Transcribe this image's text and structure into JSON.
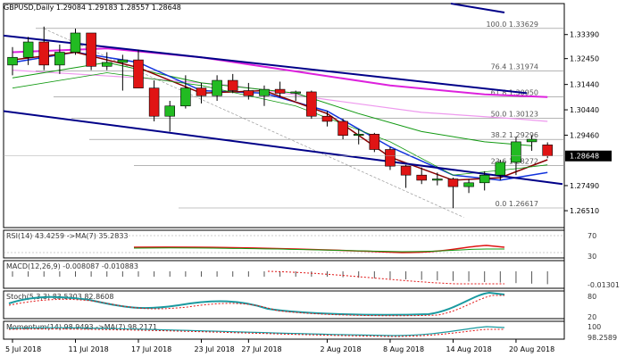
{
  "chart_data": {
    "type": "candlestick",
    "title": "GBPUSD,Daily  1.29084 1.29183 1.28557 1.28648",
    "ylim": [
      1.2585,
      1.346
    ],
    "y_ticks": [
      1.3339,
      1.3245,
      1.3144,
      1.3045,
      1.2946,
      1.2749,
      1.2651
    ],
    "y_tick_labels": [
      "1.33390",
      "1.32450",
      "1.31440",
      "1.30440",
      "1.29460",
      "1.27490",
      "1.26510"
    ],
    "current_price": 1.28648,
    "current_price_label": "1.28648",
    "x_labels": [
      "5 Jul 2018",
      "11 Jul 2018",
      "17 Jul 2018",
      "23 Jul 2018",
      "27 Jul 2018",
      "2 Aug 2018",
      "8 Aug 2018",
      "14 Aug 2018",
      "20 Aug 2018"
    ],
    "x_label_index": [
      0,
      4,
      8,
      12,
      15,
      20,
      24,
      28,
      32
    ],
    "candles": [
      {
        "o": 1.322,
        "h": 1.329,
        "l": 1.318,
        "c": 1.325
      },
      {
        "o": 1.325,
        "h": 1.333,
        "l": 1.322,
        "c": 1.331
      },
      {
        "o": 1.331,
        "h": 1.337,
        "l": 1.32,
        "c": 1.322
      },
      {
        "o": 1.322,
        "h": 1.33,
        "l": 1.3185,
        "c": 1.327
      },
      {
        "o": 1.327,
        "h": 1.3362,
        "l": 1.326,
        "c": 1.3345
      },
      {
        "o": 1.3345,
        "h": 1.3345,
        "l": 1.32,
        "c": 1.3215
      },
      {
        "o": 1.3215,
        "h": 1.327,
        "l": 1.32,
        "c": 1.323
      },
      {
        "o": 1.323,
        "h": 1.326,
        "l": 1.312,
        "c": 1.324
      },
      {
        "o": 1.324,
        "h": 1.328,
        "l": 1.313,
        "c": 1.313
      },
      {
        "o": 1.313,
        "h": 1.316,
        "l": 1.3,
        "c": 1.302
      },
      {
        "o": 1.302,
        "h": 1.308,
        "l": 1.296,
        "c": 1.306
      },
      {
        "o": 1.306,
        "h": 1.318,
        "l": 1.305,
        "c": 1.313
      },
      {
        "o": 1.313,
        "h": 1.315,
        "l": 1.307,
        "c": 1.31
      },
      {
        "o": 1.31,
        "h": 1.318,
        "l": 1.308,
        "c": 1.316
      },
      {
        "o": 1.316,
        "h": 1.3185,
        "l": 1.311,
        "c": 1.312
      },
      {
        "o": 1.312,
        "h": 1.315,
        "l": 1.3085,
        "c": 1.31
      },
      {
        "o": 1.31,
        "h": 1.314,
        "l": 1.306,
        "c": 1.3125
      },
      {
        "o": 1.3125,
        "h": 1.3155,
        "l": 1.3095,
        "c": 1.311
      },
      {
        "o": 1.311,
        "h": 1.312,
        "l": 1.308,
        "c": 1.3115
      },
      {
        "o": 1.3115,
        "h": 1.312,
        "l": 1.301,
        "c": 1.302
      },
      {
        "o": 1.302,
        "h": 1.304,
        "l": 1.298,
        "c": 1.3
      },
      {
        "o": 1.3,
        "h": 1.301,
        "l": 1.293,
        "c": 1.2945
      },
      {
        "o": 1.2945,
        "h": 1.297,
        "l": 1.291,
        "c": 1.295
      },
      {
        "o": 1.295,
        "h": 1.2955,
        "l": 1.288,
        "c": 1.289
      },
      {
        "o": 1.289,
        "h": 1.29,
        "l": 1.281,
        "c": 1.2825
      },
      {
        "o": 1.2825,
        "h": 1.283,
        "l": 1.274,
        "c": 1.279
      },
      {
        "o": 1.279,
        "h": 1.282,
        "l": 1.2755,
        "c": 1.277
      },
      {
        "o": 1.277,
        "h": 1.28,
        "l": 1.275,
        "c": 1.2775
      },
      {
        "o": 1.2775,
        "h": 1.278,
        "l": 1.2661,
        "c": 1.2745
      },
      {
        "o": 1.2745,
        "h": 1.2775,
        "l": 1.272,
        "c": 1.276
      },
      {
        "o": 1.276,
        "h": 1.2805,
        "l": 1.273,
        "c": 1.279
      },
      {
        "o": 1.279,
        "h": 1.285,
        "l": 1.277,
        "c": 1.284
      },
      {
        "o": 1.284,
        "h": 1.294,
        "l": 1.279,
        "c": 1.292
      },
      {
        "o": 1.292,
        "h": 1.2945,
        "l": 1.2885,
        "c": 1.293
      },
      {
        "o": 1.2908,
        "h": 1.2918,
        "l": 1.2856,
        "c": 1.2865
      }
    ],
    "fib_levels": [
      {
        "label": "100.0 1.33629",
        "value": 1.33629
      },
      {
        "label": "76.4 1.31974",
        "value": 1.31974
      },
      {
        "label": "61.8 1.30950",
        "value": 1.3095
      },
      {
        "label": "50.0 1.30123",
        "value": 1.30123
      },
      {
        "label": "38.2 1.29296",
        "value": 1.29296
      },
      {
        "label": "23.6 1.28272",
        "value": 1.28272
      },
      {
        "label": "0.0 1.26617",
        "value": 1.26617
      }
    ],
    "indicators": [
      {
        "label": "RSI(14) 43.4259 ->MA(7) 35.2833",
        "ticks": [
          "70",
          "30"
        ]
      },
      {
        "label": "MACD(12,26,9) -0.008087 -0.010883",
        "ticks": [
          "-0.01301"
        ]
      },
      {
        "label": "Stoch(5,3,3) 83.5303 82.8608",
        "ticks": [
          "80",
          "20"
        ]
      },
      {
        "label": "Momentum(14) 98.9493 ->MA(7) 98.2171",
        "ticks": [
          "100",
          "98.2589"
        ]
      }
    ],
    "colors": {
      "bull": "#22bb22",
      "bear": "#e01414",
      "ma_magenta": "#dd22dd",
      "ma_pink": "#ee99ee",
      "ma_green": "#119911",
      "ma_blue": "#1133dd",
      "ma_darkred": "#880000",
      "channel": "#000088",
      "price_box": "#000000"
    }
  }
}
